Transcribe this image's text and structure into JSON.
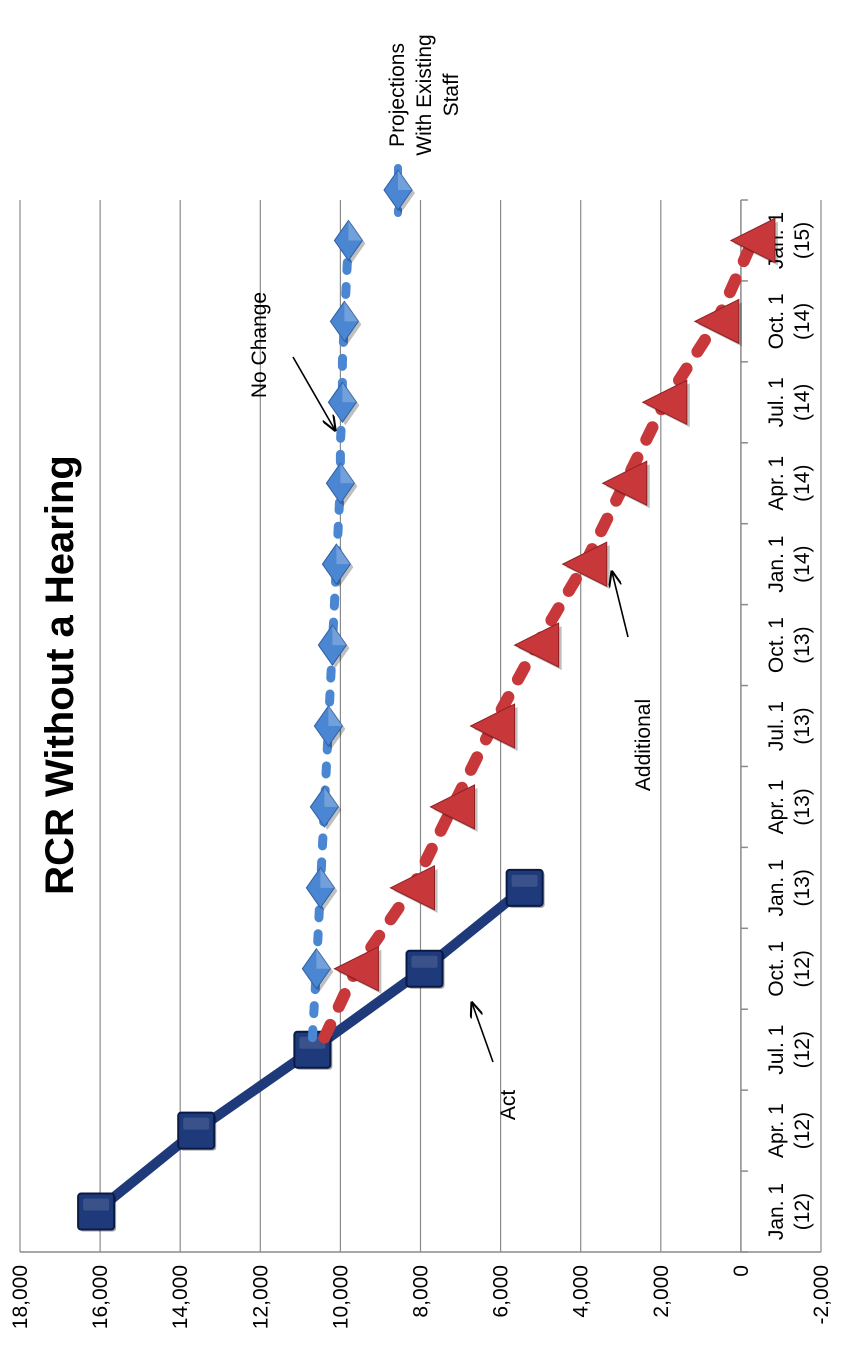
{
  "chart_data": {
    "type": "line",
    "title": "RCR Without a Hearing",
    "categories": [
      "Jan. 1 (12)",
      "Apr. 1 (12)",
      "Jul. 1 (12)",
      "Oct. 1 (12)",
      "Jan. 1 (13)",
      "Apr. 1 (13)",
      "Jul. 1 (13)",
      "Oct. 1 (13)",
      "Jan. 1 (14)",
      "Apr. 1 (14)",
      "Jul. 1 (14)",
      "Oct. 1 (14)",
      "Jan. 1 (15)"
    ],
    "category_lines": [
      [
        "Jan. 1",
        "(12)"
      ],
      [
        "Apr. 1",
        "(12)"
      ],
      [
        "Jul. 1",
        "(12)"
      ],
      [
        "Oct. 1",
        "(12)"
      ],
      [
        "Jan. 1",
        "(13)"
      ],
      [
        "Apr. 1",
        "(13)"
      ],
      [
        "Jul. 1",
        "(13)"
      ],
      [
        "Oct. 1",
        "(13)"
      ],
      [
        "Jan. 1",
        "(14)"
      ],
      [
        "Apr. 1",
        "(14)"
      ],
      [
        "Jul. 1",
        "(14)"
      ],
      [
        "Oct. 1",
        "(14)"
      ],
      [
        "Jan. 1",
        "(15)"
      ]
    ],
    "ylim": [
      -2000,
      18000
    ],
    "yticks": [
      -2000,
      0,
      2000,
      4000,
      6000,
      8000,
      10000,
      12000,
      14000,
      16000,
      18000
    ],
    "ytick_labels": [
      "-2,000",
      "0",
      "2,000",
      "4,000",
      "6,000",
      "8,000",
      "10,000",
      "12,000",
      "14,000",
      "16,000",
      "18,000"
    ],
    "grid": true,
    "legend_position": "right",
    "orientation": "rotated 90 degrees counter-clockwise",
    "series": [
      {
        "name": "",
        "color": "#1f3a7a",
        "marker": "square",
        "style": "solid",
        "x": [
          0,
          1,
          2,
          3,
          4
        ],
        "values": [
          16100,
          13600,
          10700,
          7900,
          5400
        ]
      },
      {
        "name": "Projections With Existing Staff",
        "color": "#4a86d1",
        "marker": "diamond",
        "style": "dashed",
        "x": [
          2.15,
          3,
          3.5,
          4,
          4.5,
          5,
          5.5,
          6,
          6.5,
          7,
          7.5,
          8,
          8.5,
          9,
          9.5,
          10,
          10.5,
          11,
          11.5,
          12
        ],
        "values": [
          10700,
          10600,
          10550,
          10500,
          10450,
          10400,
          10350,
          10300,
          10250,
          10200,
          10150,
          10100,
          10050,
          10000,
          10000,
          9950,
          9950,
          9900,
          9850,
          9800
        ],
        "markers": [
          3,
          4,
          5,
          6,
          7,
          8,
          9,
          10,
          11,
          12
        ]
      },
      {
        "name": "",
        "color": "#c8383a",
        "marker": "triangle",
        "style": "dashed",
        "x": [
          2.15,
          3,
          4,
          5,
          6,
          7,
          8,
          9,
          10,
          11,
          12
        ],
        "values": [
          10400,
          9600,
          8200,
          7200,
          6200,
          5100,
          3900,
          2900,
          1900,
          600,
          -300
        ],
        "markers": [
          3,
          4,
          5,
          6,
          7,
          8,
          9,
          10,
          11,
          12
        ]
      }
    ],
    "annotations": [
      {
        "text": "No Change"
      },
      {
        "text": "Additional"
      },
      {
        "text": "Act"
      }
    ]
  }
}
